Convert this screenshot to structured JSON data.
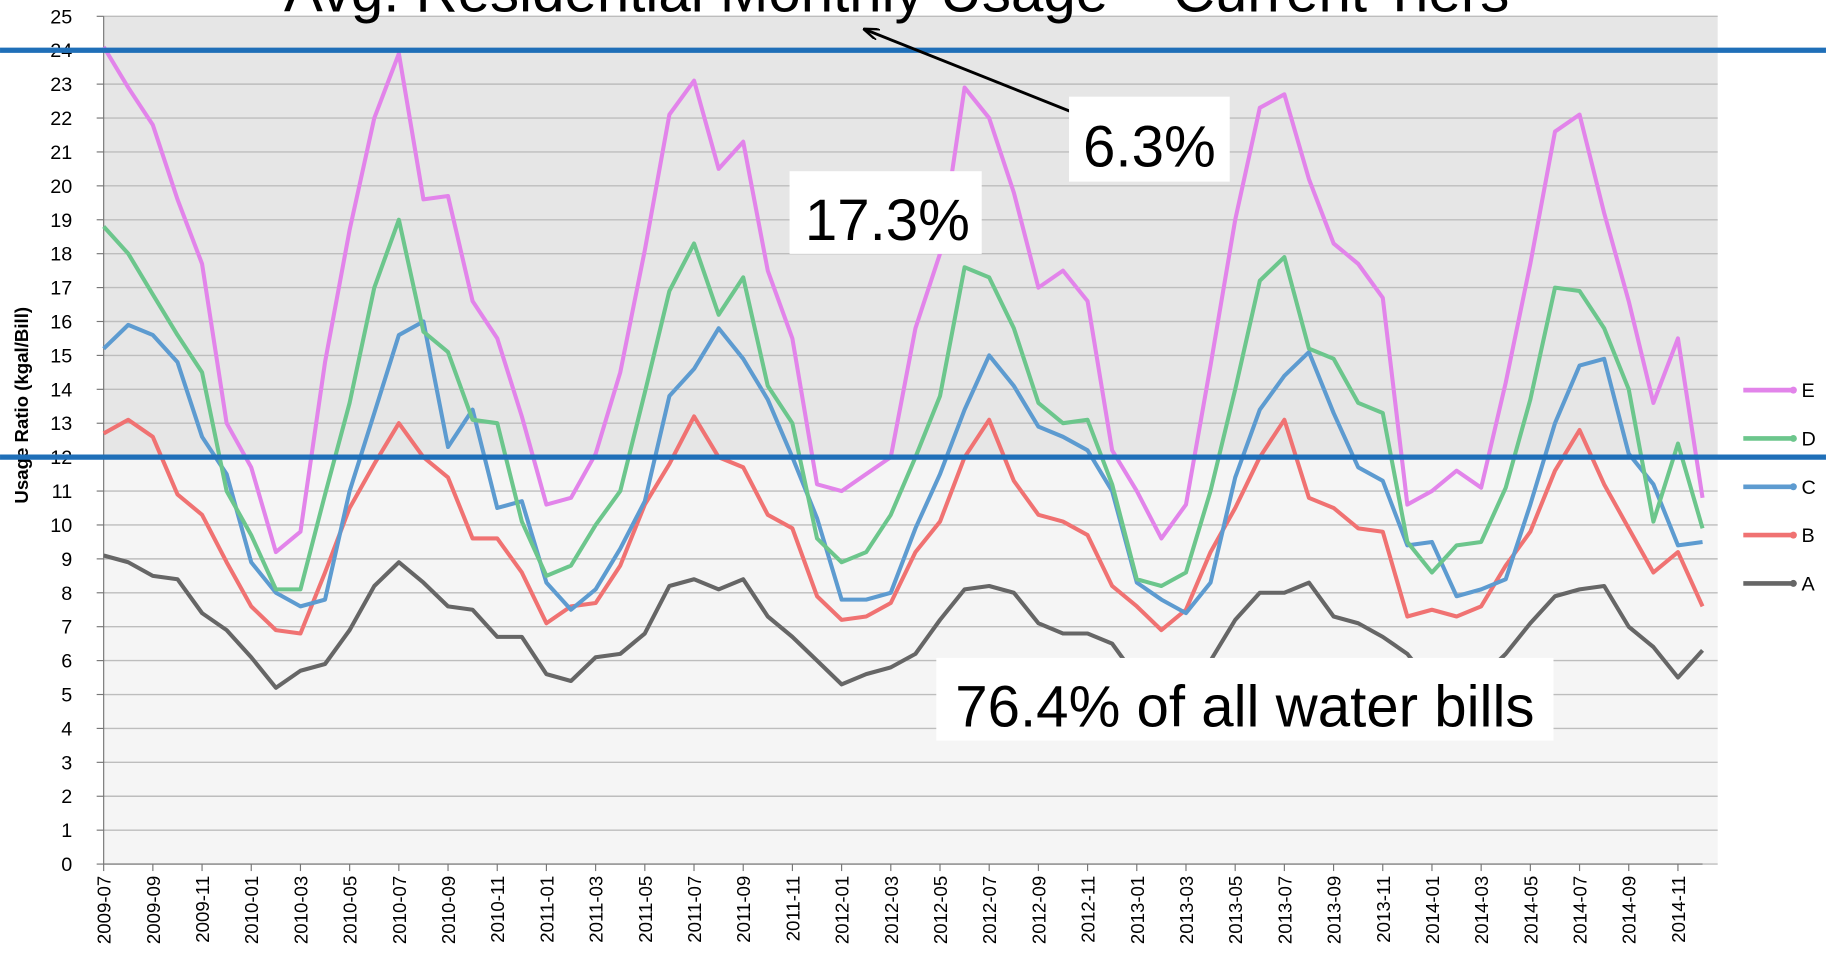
{
  "chart_data": {
    "type": "line",
    "title": "Avg. Residential Monthly Usage – Current Tiers",
    "y_label": "Usage Ratio (kgal/Bill)",
    "categories": [
      "2009-07",
      null,
      "2009-09",
      null,
      "2009-11",
      null,
      "2010-01",
      null,
      "2010-03",
      null,
      "2010-05",
      null,
      "2010-07",
      null,
      "2010-09",
      null,
      "2010-11",
      null,
      "2011-01",
      null,
      "2011-03",
      null,
      "2011-05",
      null,
      "2011-07",
      null,
      "2011-09",
      null,
      "2011-11",
      null,
      "2012-01",
      null,
      "2012-03",
      null,
      "2012-05",
      null,
      "2012-07",
      null,
      "2012-09",
      null,
      "2012-11",
      null,
      "2013-01",
      null,
      "2013-03",
      null,
      "2013-05",
      null,
      "2013-07",
      null,
      "2013-09",
      null,
      "2013-11",
      null,
      "2014-01",
      null,
      "2014-03",
      null,
      "2014-05",
      null,
      "2014-07",
      null,
      "2014-09",
      null,
      "2014-11",
      null
    ],
    "series": [
      {
        "name": "E",
        "color": "#e284ea",
        "values": [
          24.1,
          22.9,
          21.8,
          19.6,
          17.7,
          13.0,
          11.7,
          9.2,
          9.8,
          14.8,
          18.7,
          22.0,
          23.9,
          19.6,
          19.7,
          16.6,
          15.5,
          13.2,
          10.6,
          10.8,
          12.1,
          14.5,
          18.1,
          22.1,
          23.1,
          20.5,
          21.3,
          17.5,
          15.5,
          11.2,
          11.0,
          11.5,
          12.0,
          15.8,
          18.0,
          22.9,
          22.0,
          19.8,
          17.0,
          17.5,
          16.6,
          12.2,
          11.0,
          9.6,
          10.6,
          14.7,
          19.0,
          22.3,
          22.7,
          20.2,
          18.3,
          17.7,
          16.7,
          10.6,
          11.0,
          11.6,
          11.1,
          14.2,
          17.7,
          21.6,
          22.1,
          19.2,
          16.6,
          13.6,
          15.5,
          10.8
        ]
      },
      {
        "name": "D",
        "color": "#6cc68c",
        "values": [
          18.8,
          18.0,
          16.8,
          15.6,
          14.5,
          11.0,
          9.7,
          8.1,
          8.1,
          10.9,
          13.6,
          17.0,
          19.0,
          15.7,
          15.1,
          13.1,
          13.0,
          10.1,
          8.5,
          8.8,
          10.0,
          11.0,
          13.9,
          16.9,
          18.3,
          16.2,
          17.3,
          14.1,
          13.0,
          9.6,
          8.9,
          9.2,
          10.3,
          12.0,
          13.8,
          17.6,
          17.3,
          15.8,
          13.6,
          13.0,
          13.1,
          11.2,
          8.4,
          8.2,
          8.6,
          11.0,
          14.0,
          17.2,
          17.9,
          15.2,
          14.9,
          13.6,
          13.3,
          9.5,
          8.6,
          9.4,
          9.5,
          11.1,
          13.7,
          17.0,
          16.9,
          15.8,
          14.0,
          10.1,
          12.4,
          9.9
        ]
      },
      {
        "name": "C",
        "color": "#5d9bd0",
        "values": [
          15.2,
          15.9,
          15.6,
          14.8,
          12.6,
          11.5,
          8.9,
          8.0,
          7.6,
          7.8,
          11.0,
          13.3,
          15.6,
          16.0,
          12.3,
          13.4,
          10.5,
          10.7,
          8.3,
          7.5,
          8.1,
          9.3,
          10.7,
          13.8,
          14.6,
          15.8,
          14.9,
          13.7,
          12.0,
          10.2,
          7.8,
          7.8,
          8.0,
          9.9,
          11.5,
          13.4,
          15.0,
          14.1,
          12.9,
          12.6,
          12.2,
          11.0,
          8.3,
          7.8,
          7.4,
          8.3,
          11.4,
          13.4,
          14.4,
          15.1,
          13.3,
          11.7,
          11.3,
          9.4,
          9.5,
          7.9,
          8.1,
          8.4,
          10.6,
          13.0,
          14.7,
          14.9,
          12.1,
          11.2,
          9.4,
          9.5
        ]
      },
      {
        "name": "B",
        "color": "#f07272",
        "values": [
          12.7,
          13.1,
          12.6,
          10.9,
          10.3,
          8.9,
          7.6,
          6.9,
          6.8,
          8.6,
          10.5,
          11.8,
          13.0,
          12.0,
          11.4,
          9.6,
          9.6,
          8.6,
          7.1,
          7.6,
          7.7,
          8.8,
          10.6,
          11.8,
          13.2,
          12.0,
          11.7,
          10.3,
          9.9,
          7.9,
          7.2,
          7.3,
          7.7,
          9.2,
          10.1,
          12.0,
          13.1,
          11.3,
          10.3,
          10.1,
          9.7,
          8.2,
          7.6,
          6.9,
          7.5,
          9.2,
          10.5,
          12.0,
          13.1,
          10.8,
          10.5,
          9.9,
          9.8,
          7.3,
          7.5,
          7.3,
          7.6,
          8.8,
          9.8,
          11.6,
          12.8,
          11.2,
          9.9,
          8.6,
          9.2,
          7.6
        ]
      },
      {
        "name": "A",
        "color": "#666666",
        "values": [
          9.1,
          8.9,
          8.5,
          8.4,
          7.4,
          6.9,
          6.1,
          5.2,
          5.7,
          5.9,
          6.9,
          8.2,
          8.9,
          8.3,
          7.6,
          7.5,
          6.7,
          6.7,
          5.6,
          5.4,
          6.1,
          6.2,
          6.8,
          8.2,
          8.4,
          8.1,
          8.4,
          7.3,
          6.7,
          6.0,
          5.3,
          5.6,
          5.8,
          6.2,
          7.2,
          8.1,
          8.2,
          8.0,
          7.1,
          6.8,
          6.8,
          6.5,
          5.5,
          5.0,
          5.3,
          6.0,
          7.2,
          8.0,
          8.0,
          8.3,
          7.3,
          7.1,
          6.7,
          6.2,
          5.3,
          5.1,
          5.5,
          6.2,
          7.1,
          7.9,
          8.1,
          8.2,
          7.0,
          6.4,
          5.5,
          6.3
        ]
      }
    ],
    "ylim": [
      0,
      25
    ],
    "yticks": [
      0,
      1,
      2,
      3,
      4,
      5,
      6,
      7,
      8,
      9,
      10,
      11,
      12,
      13,
      14,
      15,
      16,
      17,
      18,
      19,
      20,
      21,
      22,
      23,
      24,
      25
    ],
    "grid": true,
    "legend": "right",
    "reference_lines": [
      24,
      12
    ],
    "reference_color": "#1f6fb8",
    "annotations": [
      "6.3%",
      "17.3%",
      "76.4% of all water bills"
    ]
  }
}
